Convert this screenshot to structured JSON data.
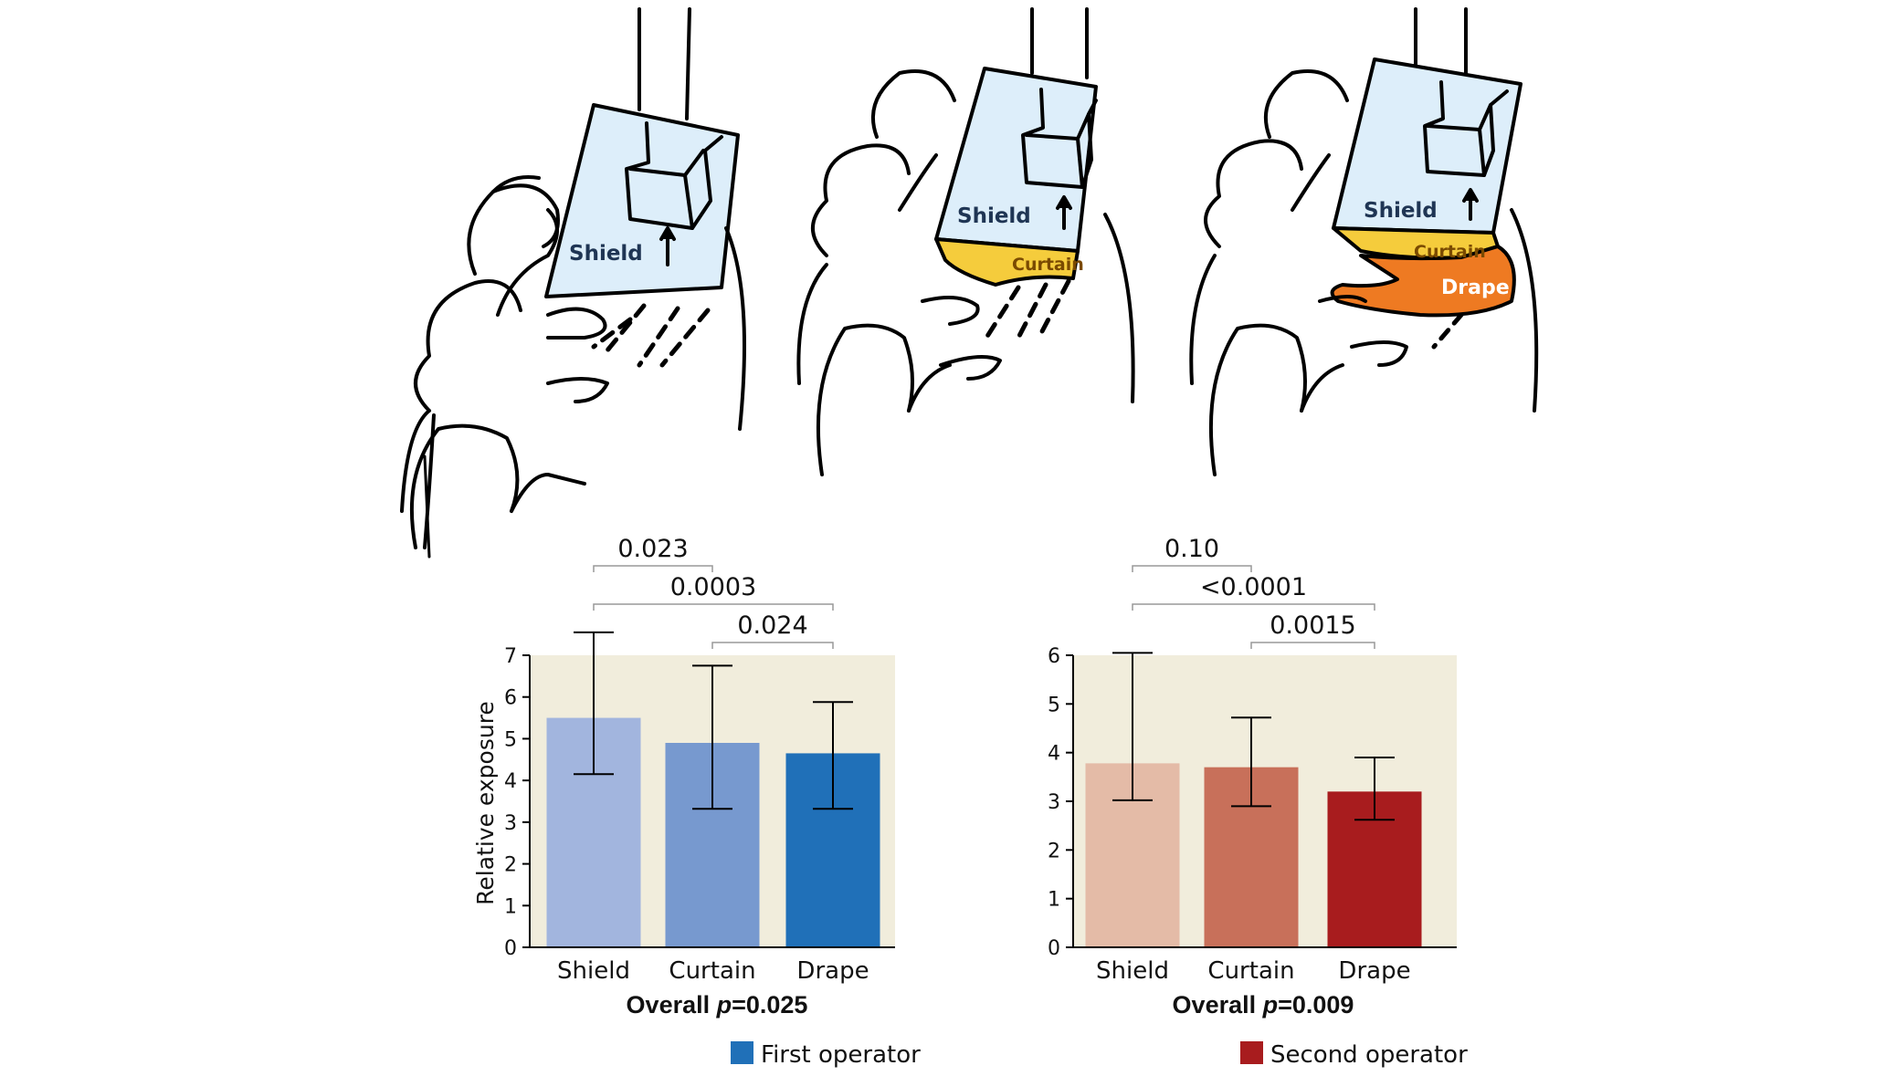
{
  "illustration": {
    "panels": [
      {
        "labels": {
          "shield": "Shield"
        }
      },
      {
        "labels": {
          "shield": "Shield",
          "curtain": "Curtain"
        }
      },
      {
        "labels": {
          "shield": "Shield",
          "curtain": "Curtain",
          "drape": "Drape"
        }
      }
    ],
    "colors": {
      "shield": "#ddeefa",
      "curtain": "#f5cc3c",
      "drape": "#ee7a22"
    }
  },
  "chart_data": [
    {
      "type": "bar",
      "categories": [
        "Shield",
        "Curtain",
        "Drape"
      ],
      "values": [
        5.5,
        4.9,
        4.65
      ],
      "error_low": [
        4.15,
        3.32,
        3.32
      ],
      "error_high": [
        7.55,
        6.75,
        5.88
      ],
      "colors": [
        "#a2b5de",
        "#7799cf",
        "#2070b8"
      ],
      "ylabel": "Relative exposure",
      "ylim": [
        0,
        7
      ],
      "yticks": [
        0,
        1,
        2,
        3,
        4,
        5,
        6,
        7
      ],
      "comparisons": [
        {
          "from": 0,
          "to": 1,
          "label": "0.023"
        },
        {
          "from": 0,
          "to": 2,
          "label": "0.0003"
        },
        {
          "from": 1,
          "to": 2,
          "label": "0.024"
        }
      ],
      "overall_prefix": "Overall ",
      "overall_p": "p",
      "overall_value": "=0.025",
      "legend": {
        "label": "First operator",
        "color": "#2070b8"
      },
      "background": "#f1eddc"
    },
    {
      "type": "bar",
      "categories": [
        "Shield",
        "Curtain",
        "Drape"
      ],
      "values": [
        3.78,
        3.7,
        3.2
      ],
      "error_low": [
        3.02,
        2.9,
        2.62
      ],
      "error_high": [
        6.05,
        4.72,
        3.9
      ],
      "colors": [
        "#e4bba7",
        "#c8705a",
        "#a81c1e"
      ],
      "ylabel": "",
      "ylim": [
        0,
        6
      ],
      "yticks": [
        0,
        1,
        2,
        3,
        4,
        5,
        6
      ],
      "comparisons": [
        {
          "from": 0,
          "to": 1,
          "label": "0.10"
        },
        {
          "from": 0,
          "to": 2,
          "label": "<0.0001"
        },
        {
          "from": 1,
          "to": 2,
          "label": "0.0015"
        }
      ],
      "overall_prefix": "Overall ",
      "overall_p": "p",
      "overall_value": "=0.009",
      "legend": {
        "label": "Second operator",
        "color": "#a81c1e"
      },
      "background": "#f1eddc"
    }
  ]
}
